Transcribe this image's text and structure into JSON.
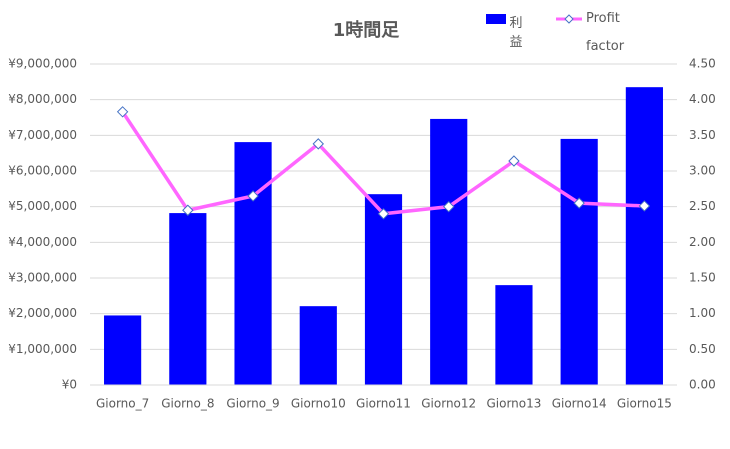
{
  "chart_data": {
    "type": "combo",
    "title": "1時間足",
    "categories": [
      "Giorno_7",
      "Giorno_8",
      "Giorno_9",
      "Giorno10",
      "Giorno11",
      "Giorno12",
      "Giorno13",
      "Giorno14",
      "Giorno15"
    ],
    "series": [
      {
        "name": "利益",
        "type": "bar",
        "color": "#0000ff",
        "values": [
          1950000,
          4820000,
          6810000,
          2210000,
          5350000,
          7460000,
          2800000,
          6900000,
          8350000
        ]
      },
      {
        "name": "Profit factor",
        "type": "line",
        "axis": "y2",
        "color": "#ff66ff",
        "values": [
          3.83,
          2.45,
          2.65,
          3.38,
          2.4,
          2.5,
          3.14,
          2.55,
          2.51
        ]
      }
    ],
    "ylim": [
      0,
      9000000
    ],
    "yticks": [
      {
        "value": 0,
        "label": "¥0"
      },
      {
        "value": 1000000,
        "label": "¥1,000,000"
      },
      {
        "value": 2000000,
        "label": "¥2,000,000"
      },
      {
        "value": 3000000,
        "label": "¥3,000,000"
      },
      {
        "value": 4000000,
        "label": "¥4,000,000"
      },
      {
        "value": 5000000,
        "label": "¥5,000,000"
      },
      {
        "value": 6000000,
        "label": "¥6,000,000"
      },
      {
        "value": 7000000,
        "label": "¥7,000,000"
      },
      {
        "value": 8000000,
        "label": "¥8,000,000"
      },
      {
        "value": 9000000,
        "label": "¥9,000,000"
      }
    ],
    "y2lim": [
      0,
      4.5
    ],
    "y2ticks": [
      {
        "value": 0,
        "label": "0.00"
      },
      {
        "value": 0.5,
        "label": "0.50"
      },
      {
        "value": 1,
        "label": "1.00"
      },
      {
        "value": 1.5,
        "label": "1.50"
      },
      {
        "value": 2,
        "label": "2.00"
      },
      {
        "value": 2.5,
        "label": "2.50"
      },
      {
        "value": 3,
        "label": "3.00"
      },
      {
        "value": 3.5,
        "label": "3.50"
      },
      {
        "value": 4,
        "label": "4.00"
      },
      {
        "value": 4.5,
        "label": "4.50"
      }
    ],
    "grid": true
  }
}
